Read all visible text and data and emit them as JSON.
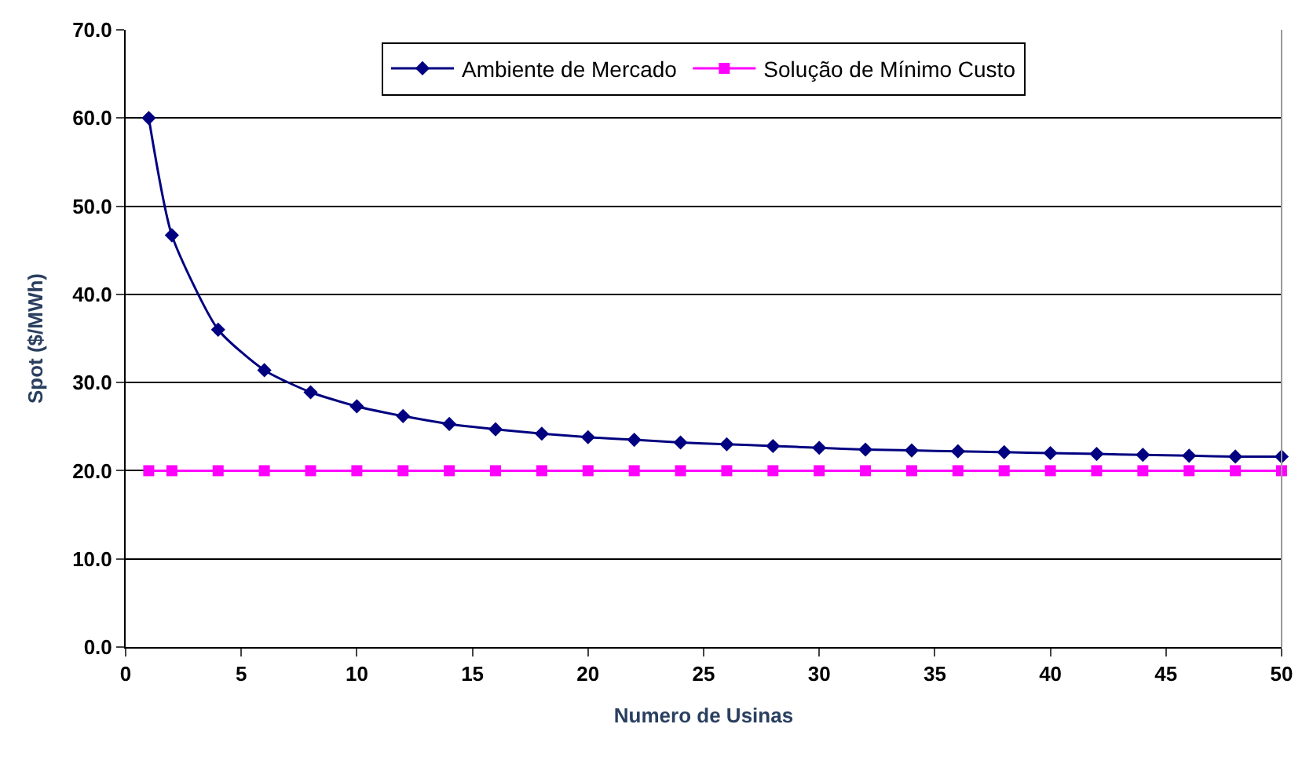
{
  "chart_data": {
    "type": "line",
    "xlabel": "Numero de Usinas",
    "ylabel": "Spot ($/MWh)",
    "x": [
      1,
      2,
      4,
      6,
      8,
      10,
      12,
      14,
      16,
      18,
      20,
      22,
      24,
      26,
      28,
      30,
      32,
      34,
      36,
      38,
      40,
      42,
      44,
      46,
      48,
      50
    ],
    "series": [
      {
        "name": "Ambiente de Mercado",
        "color": "#000080",
        "marker": "diamond",
        "values": [
          60.0,
          46.7,
          36.0,
          31.4,
          28.9,
          27.3,
          26.2,
          25.3,
          24.7,
          24.2,
          23.8,
          23.5,
          23.2,
          23.0,
          22.8,
          22.6,
          22.4,
          22.3,
          22.2,
          22.1,
          22.0,
          21.9,
          21.8,
          21.7,
          21.6,
          21.6
        ]
      },
      {
        "name": "Solução de Mínimo Custo",
        "color": "#ff00ff",
        "marker": "square",
        "values": [
          20,
          20,
          20,
          20,
          20,
          20,
          20,
          20,
          20,
          20,
          20,
          20,
          20,
          20,
          20,
          20,
          20,
          20,
          20,
          20,
          20,
          20,
          20,
          20,
          20,
          20
        ]
      }
    ],
    "xlim": [
      0,
      50
    ],
    "xticks": [
      0,
      5,
      10,
      15,
      20,
      25,
      30,
      35,
      40,
      45,
      50
    ],
    "ylim": [
      0,
      70
    ],
    "yticks": [
      {
        "value": 0,
        "label": "0.0"
      },
      {
        "value": 10,
        "label": "10.0"
      },
      {
        "value": 20,
        "label": "20.0"
      },
      {
        "value": 30,
        "label": "30.0"
      },
      {
        "value": 40,
        "label": "40.0"
      },
      {
        "value": 50,
        "label": "50.0"
      },
      {
        "value": 60,
        "label": "60.0"
      },
      {
        "value": 70,
        "label": "70.0"
      }
    ],
    "grid": "y",
    "legend": "top",
    "line_style": "solid"
  }
}
